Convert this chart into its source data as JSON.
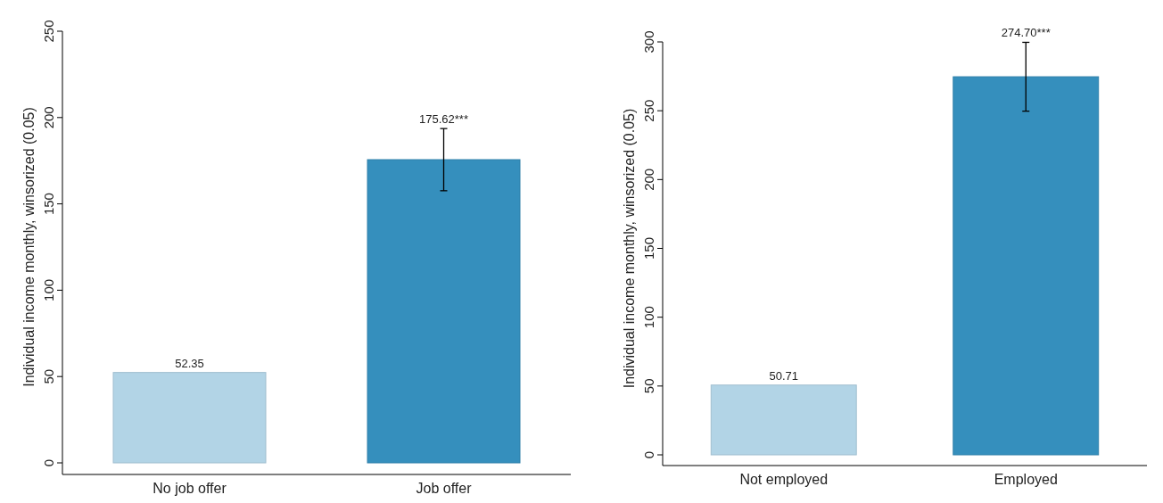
{
  "chart_data": [
    {
      "type": "bar",
      "ylabel": "Individual income monthly, winsorized (0.05)",
      "categories": [
        "No job offer",
        "Job offer"
      ],
      "values": [
        52.35,
        175.62
      ],
      "colors": [
        "#b2d4e6",
        "#358fbd"
      ],
      "errors": [
        null,
        18
      ],
      "value_labels": [
        "52.35",
        "175.62***"
      ],
      "ylim": [
        0,
        250
      ],
      "yticks": [
        0,
        50,
        100,
        150,
        200,
        250
      ],
      "grid": false
    },
    {
      "type": "bar",
      "ylabel": "Individual income monthly, winsorized (0.05)",
      "categories": [
        "Not employed",
        "Employed"
      ],
      "values": [
        50.71,
        274.7
      ],
      "colors": [
        "#b2d4e6",
        "#358fbd"
      ],
      "errors": [
        null,
        25
      ],
      "value_labels": [
        "50.71",
        "274.70***"
      ],
      "ylim": [
        0,
        300
      ],
      "yticks": [
        0,
        50,
        100,
        150,
        200,
        250,
        300
      ],
      "grid": false
    }
  ]
}
